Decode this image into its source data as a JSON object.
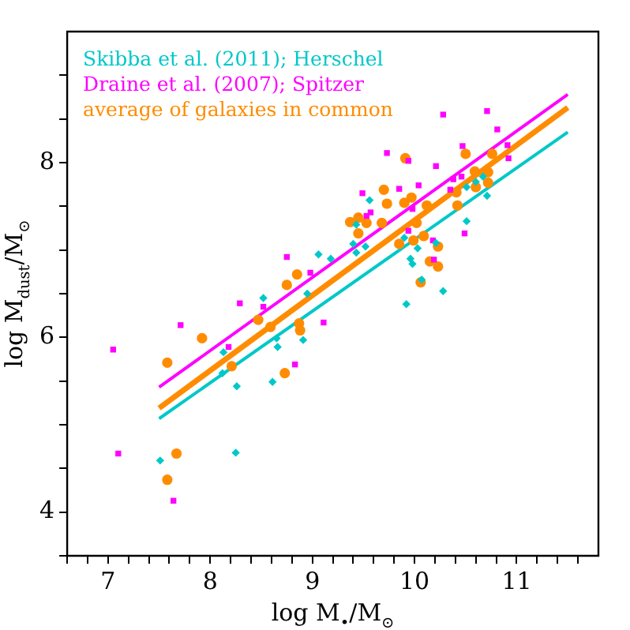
{
  "chart_data": {
    "type": "scatter",
    "xlabel": "log M$_{•}$/M$_{⊙}$",
    "ylabel": "log M$_{dust}$/M$_{⊙}$",
    "xlim": [
      6.6,
      11.8
    ],
    "ylim": [
      3.5,
      9.5
    ],
    "xticks": [
      {
        "value": 6.6,
        "label": null
      },
      {
        "value": 6.8,
        "label": null
      },
      7,
      {
        "value": 7.2,
        "label": null
      },
      {
        "value": 7.4,
        "label": null
      },
      {
        "value": 7.6,
        "label": null
      },
      {
        "value": 7.8,
        "label": null
      },
      8,
      {
        "value": 8.2,
        "label": null
      },
      {
        "value": 8.4,
        "label": null
      },
      {
        "value": 8.6,
        "label": null
      },
      {
        "value": 8.8,
        "label": null
      },
      9,
      {
        "value": 9.2,
        "label": null
      },
      {
        "value": 9.4,
        "label": null
      },
      {
        "value": 9.6,
        "label": null
      },
      {
        "value": 9.8,
        "label": null
      },
      10,
      {
        "value": 10.2,
        "label": null
      },
      {
        "value": 10.4,
        "label": null
      },
      {
        "value": 10.6,
        "label": null
      },
      {
        "value": 10.8,
        "label": null
      },
      11,
      {
        "value": 11.2,
        "label": null
      },
      {
        "value": 11.4,
        "label": null
      },
      {
        "value": 11.6,
        "label": null
      }
    ],
    "yticks": [
      {
        "value": 3.5,
        "label": null
      },
      4,
      {
        "value": 4.5,
        "label": null
      },
      {
        "value": 5,
        "label": null
      },
      {
        "value": 5.5,
        "label": null
      },
      6,
      {
        "value": 6.5,
        "label": null
      },
      {
        "value": 7,
        "label": null
      },
      {
        "value": 7.5,
        "label": null
      },
      8,
      {
        "value": 8.5,
        "label": null
      },
      {
        "value": 9,
        "label": null
      }
    ],
    "grid": false,
    "legend": "top left",
    "series": [
      {
        "name": "Skibba et al. (2011); Herschel",
        "color": "#00c8c8",
        "marker": "diamond",
        "x": [
          7.51,
          8.25,
          8.12,
          8.13,
          8.26,
          8.52,
          8.65,
          8.66,
          8.61,
          8.91,
          8.95,
          9.06,
          9.18,
          9.4,
          9.43,
          9.43,
          9.52,
          9.56,
          9.92,
          9.9,
          9.96,
          9.98,
          10.03,
          10.07,
          10.28,
          10.21,
          10.51,
          10.51,
          10.6,
          10.71,
          10.67
        ],
        "values": [
          4.59,
          4.68,
          5.59,
          5.83,
          5.44,
          6.45,
          5.99,
          5.89,
          5.49,
          5.97,
          6.5,
          6.95,
          6.9,
          7.07,
          7.29,
          6.97,
          7.04,
          7.57,
          6.38,
          7.14,
          6.9,
          6.84,
          7.02,
          6.66,
          6.53,
          7.08,
          7.33,
          7.72,
          7.78,
          7.62,
          7.84
        ]
      },
      {
        "name": "Draine et al. (2007); Spitzer",
        "color": "#ff00ff",
        "marker": "square",
        "x": [
          7.05,
          7.1,
          7.71,
          7.64,
          8.18,
          8.29,
          8.52,
          8.75,
          8.83,
          8.98,
          9.11,
          9.49,
          9.53,
          9.57,
          9.73,
          9.85,
          9.94,
          9.98,
          9.94,
          10.04,
          10.18,
          10.21,
          10.19,
          10.28,
          10.35,
          10.38,
          10.47,
          10.46,
          10.49,
          10.71,
          10.81,
          10.91,
          10.92
        ],
        "values": [
          5.86,
          4.67,
          6.14,
          4.13,
          5.89,
          6.39,
          6.35,
          6.92,
          5.69,
          6.74,
          6.17,
          7.65,
          7.39,
          7.43,
          8.11,
          7.7,
          8.02,
          7.47,
          7.22,
          7.74,
          7.11,
          7.96,
          6.89,
          8.55,
          7.69,
          7.81,
          8.19,
          7.84,
          7.19,
          8.59,
          8.38,
          8.2,
          8.05
        ]
      },
      {
        "name": "average of galaxies in common",
        "color": "#ff8c00",
        "marker": "circle",
        "x": [
          7.58,
          7.67,
          7.58,
          7.92,
          8.21,
          8.47,
          8.59,
          8.73,
          8.75,
          8.85,
          8.87,
          8.88,
          9.37,
          9.45,
          9.45,
          9.53,
          9.68,
          9.7,
          9.73,
          9.85,
          9.9,
          9.91,
          9.97,
          9.99,
          10.02,
          10.06,
          10.09,
          10.12,
          10.15,
          10.23,
          10.23,
          10.41,
          10.42,
          10.5,
          10.59,
          10.6,
          10.72,
          10.72,
          10.76
        ],
        "values": [
          5.71,
          4.67,
          4.37,
          5.99,
          5.67,
          6.2,
          6.12,
          5.59,
          6.6,
          6.72,
          6.16,
          6.08,
          7.32,
          7.37,
          7.19,
          7.31,
          7.31,
          7.69,
          7.53,
          7.07,
          7.54,
          8.05,
          7.6,
          7.11,
          7.31,
          6.63,
          7.16,
          7.51,
          6.87,
          6.81,
          7.04,
          7.66,
          7.51,
          8.1,
          7.9,
          7.72,
          7.89,
          7.77,
          8.1
        ]
      },
      {
        "type": "line",
        "color": "#00c8c8",
        "marker": "none",
        "x": [
          7.5,
          11.5
        ],
        "values": [
          5.07,
          8.35
        ]
      },
      {
        "type": "line",
        "color": "#ff00ff",
        "marker": "none",
        "x": [
          7.5,
          11.5
        ],
        "values": [
          5.43,
          8.78
        ]
      },
      {
        "type": "line",
        "color": "#ff8c00",
        "marker": "none",
        "x": [
          7.5,
          11.5
        ],
        "values": [
          5.19,
          8.63
        ]
      }
    ]
  }
}
